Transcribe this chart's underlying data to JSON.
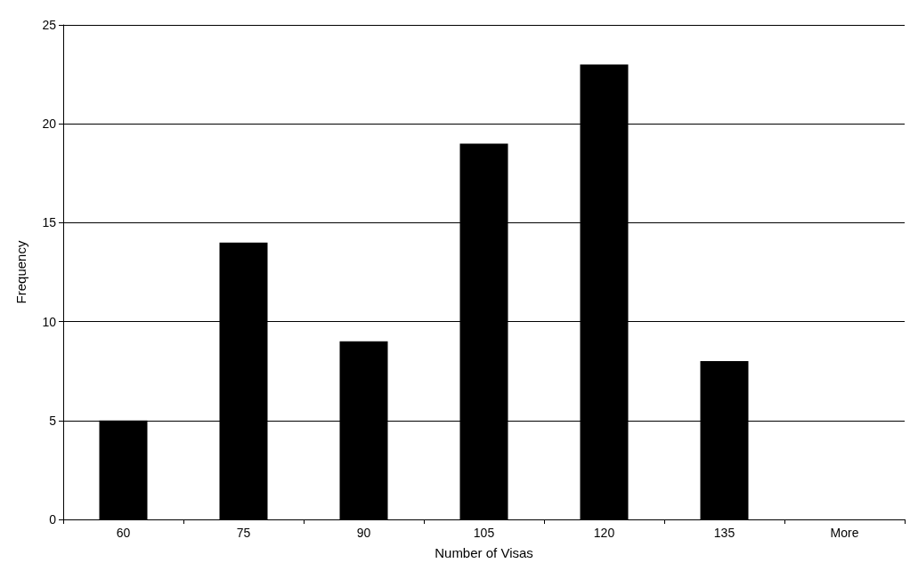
{
  "chart_data": {
    "type": "bar",
    "xlabel": "Number of Visas",
    "ylabel": "Frequency",
    "categories": [
      "60",
      "75",
      "90",
      "105",
      "120",
      "135",
      "More"
    ],
    "values": [
      5,
      14,
      9,
      19,
      23,
      8,
      0
    ],
    "color": "#000000",
    "ylim": [
      0,
      25
    ],
    "yticks": [
      0,
      5,
      10,
      15,
      20,
      25
    ],
    "grid": "y"
  }
}
